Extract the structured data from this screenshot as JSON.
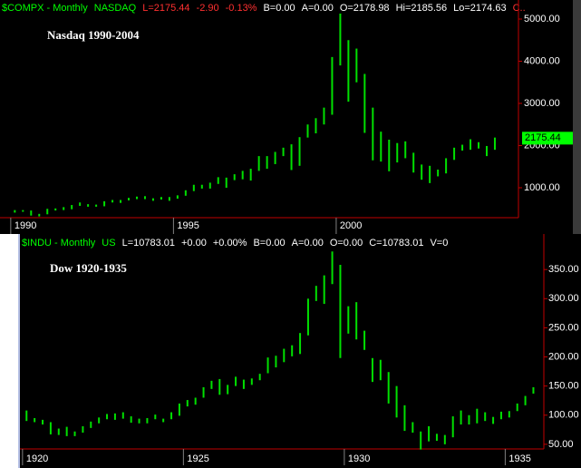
{
  "chart_data": [
    {
      "type": "range_bar",
      "header_items": [
        {
          "text": "$COMPX - Monthly",
          "color": "#00ff00"
        },
        {
          "text": "NASDAQ",
          "color": "#00ff00"
        },
        {
          "text": "L=2175.44",
          "color": "#ff3030"
        },
        {
          "text": "-2.90",
          "color": "#ff3030"
        },
        {
          "text": "-0.13%",
          "color": "#ff3030"
        },
        {
          "text": "B=0.00",
          "color": "#ffffff"
        },
        {
          "text": "A=0.00",
          "color": "#ffffff"
        },
        {
          "text": "O=2178.98",
          "color": "#ffffff"
        },
        {
          "text": "Hi=2185.56",
          "color": "#ffffff"
        },
        {
          "text": "Lo=2174.63",
          "color": "#ffffff"
        },
        {
          "text": "C..",
          "color": "#ff3030"
        }
      ],
      "annotation": "Nasdaq 1990-2004",
      "color": "#00e000",
      "x": [
        1990.125,
        1990.375,
        1990.625,
        1990.875,
        1991.125,
        1991.375,
        1991.625,
        1991.875,
        1992.125,
        1992.375,
        1992.625,
        1992.875,
        1993.125,
        1993.375,
        1993.625,
        1993.875,
        1994.125,
        1994.375,
        1994.625,
        1994.875,
        1995.125,
        1995.375,
        1995.625,
        1995.875,
        1996.125,
        1996.375,
        1996.625,
        1996.875,
        1997.125,
        1997.375,
        1997.625,
        1997.875,
        1998.125,
        1998.375,
        1998.625,
        1998.875,
        1999.125,
        1999.375,
        1999.625,
        1999.875,
        2000.125,
        2000.375,
        2000.625,
        2000.875,
        2001.125,
        2001.375,
        2001.625,
        2001.875,
        2002.125,
        2002.375,
        2002.625,
        2002.875,
        2003.125,
        2003.375,
        2003.625,
        2003.875,
        2004.125,
        2004.375,
        2004.625,
        2004.875
      ],
      "high": [
        470,
        470,
        460,
        380,
        500,
        510,
        540,
        590,
        650,
        610,
        600,
        680,
        710,
        710,
        760,
        790,
        800,
        750,
        780,
        780,
        820,
        940,
        1070,
        1070,
        1120,
        1250,
        1240,
        1320,
        1400,
        1450,
        1750,
        1750,
        1850,
        1950,
        2030,
        2200,
        2500,
        2650,
        2900,
        4100,
        5130,
        4500,
        4300,
        3700,
        2900,
        2330,
        2140,
        2060,
        2100,
        1830,
        1550,
        1520,
        1430,
        1700,
        1950,
        2020,
        2150,
        2080,
        1990,
        2190
      ],
      "low": [
        410,
        430,
        340,
        320,
        370,
        460,
        470,
        490,
        570,
        550,
        550,
        560,
        650,
        640,
        700,
        730,
        730,
        690,
        720,
        690,
        740,
        810,
        920,
        980,
        980,
        1090,
        1000,
        1180,
        1200,
        1170,
        1400,
        1450,
        1560,
        1750,
        1420,
        1520,
        2190,
        2290,
        2500,
        2730,
        3900,
        3040,
        3500,
        2300,
        1650,
        1620,
        1390,
        1600,
        1700,
        1360,
        1190,
        1110,
        1270,
        1340,
        1660,
        1880,
        1900,
        1930,
        1750,
        1900
      ],
      "last_price": 2175.44,
      "xlim": [
        1989.67,
        2005.6
      ],
      "xticks": [
        1990,
        1995,
        2000
      ],
      "ylim": [
        290,
        5452
      ],
      "yticks": [
        {
          "value": 1000,
          "label": "1000.00"
        },
        {
          "value": 2000,
          "label": "2000.00"
        },
        {
          "value": 3000,
          "label": "3000.00"
        },
        {
          "value": 4000,
          "label": "4000.00"
        },
        {
          "value": 5000,
          "label": "5000.00"
        }
      ]
    },
    {
      "type": "range_bar",
      "header_items": [
        {
          "text": "$INDU - Monthly",
          "color": "#00ff00"
        },
        {
          "text": "US",
          "color": "#00ff00"
        },
        {
          "text": "L=10783.01",
          "color": "#ffffff"
        },
        {
          "text": "+0.00",
          "color": "#ffffff"
        },
        {
          "text": "+0.00%",
          "color": "#ffffff"
        },
        {
          "text": "B=0.00",
          "color": "#ffffff"
        },
        {
          "text": "A=0.00",
          "color": "#ffffff"
        },
        {
          "text": "O=0.00",
          "color": "#ffffff"
        },
        {
          "text": "C=10783.01",
          "color": "#ffffff"
        },
        {
          "text": "V=0",
          "color": "#ffffff"
        }
      ],
      "annotation": "Dow 1920-1935",
      "color": "#00e000",
      "x": [
        1920.125,
        1920.375,
        1920.625,
        1920.875,
        1921.125,
        1921.375,
        1921.625,
        1921.875,
        1922.125,
        1922.375,
        1922.625,
        1922.875,
        1923.125,
        1923.375,
        1923.625,
        1923.875,
        1924.125,
        1924.375,
        1924.625,
        1924.875,
        1925.125,
        1925.375,
        1925.625,
        1925.875,
        1926.125,
        1926.375,
        1926.625,
        1926.875,
        1927.125,
        1927.375,
        1927.625,
        1927.875,
        1928.125,
        1928.375,
        1928.625,
        1928.875,
        1929.125,
        1929.375,
        1929.625,
        1929.875,
        1930.125,
        1930.375,
        1930.625,
        1930.875,
        1931.125,
        1931.375,
        1931.625,
        1931.875,
        1932.125,
        1932.375,
        1932.625,
        1932.875,
        1933.125,
        1933.375,
        1933.625,
        1933.875,
        1934.125,
        1934.375,
        1934.625,
        1934.875,
        1935.125,
        1935.375,
        1935.625,
        1935.875
      ],
      "high": [
        108,
        95,
        92,
        88,
        77,
        80,
        72,
        81,
        89,
        96,
        102,
        103,
        105,
        98,
        94,
        95,
        101,
        94,
        105,
        120,
        126,
        130,
        148,
        159,
        162,
        152,
        166,
        161,
        163,
        171,
        199,
        202,
        214,
        220,
        241,
        300,
        322,
        340,
        381,
        358,
        287,
        294,
        245,
        198,
        195,
        174,
        150,
        117,
        88,
        72,
        81,
        68,
        66,
        98,
        108,
        100,
        111,
        105,
        97,
        106,
        107,
        120,
        133,
        148
      ],
      "low": [
        90,
        88,
        84,
        67,
        66,
        64,
        64,
        70,
        78,
        86,
        93,
        92,
        94,
        87,
        86,
        86,
        93,
        88,
        93,
        99,
        115,
        118,
        130,
        145,
        135,
        136,
        150,
        145,
        152,
        160,
        172,
        182,
        191,
        201,
        205,
        237,
        296,
        291,
        325,
        198,
        240,
        230,
        212,
        157,
        160,
        120,
        96,
        73,
        70,
        41,
        55,
        56,
        50,
        62,
        84,
        84,
        86,
        90,
        85,
        93,
        96,
        107,
        117,
        137
      ],
      "xlim": [
        1919.92,
        1936.2
      ],
      "xticks": [
        1920,
        1925,
        1930,
        1935
      ],
      "ylim": [
        42,
        411
      ],
      "yticks": [
        {
          "value": 50,
          "label": "50.00"
        },
        {
          "value": 100,
          "label": "100.00"
        },
        {
          "value": 150,
          "label": "150.00"
        },
        {
          "value": 200,
          "label": "200.00"
        },
        {
          "value": 250,
          "label": "250.00"
        },
        {
          "value": 300,
          "label": "300.00"
        },
        {
          "value": 350,
          "label": "350.00"
        }
      ]
    }
  ]
}
